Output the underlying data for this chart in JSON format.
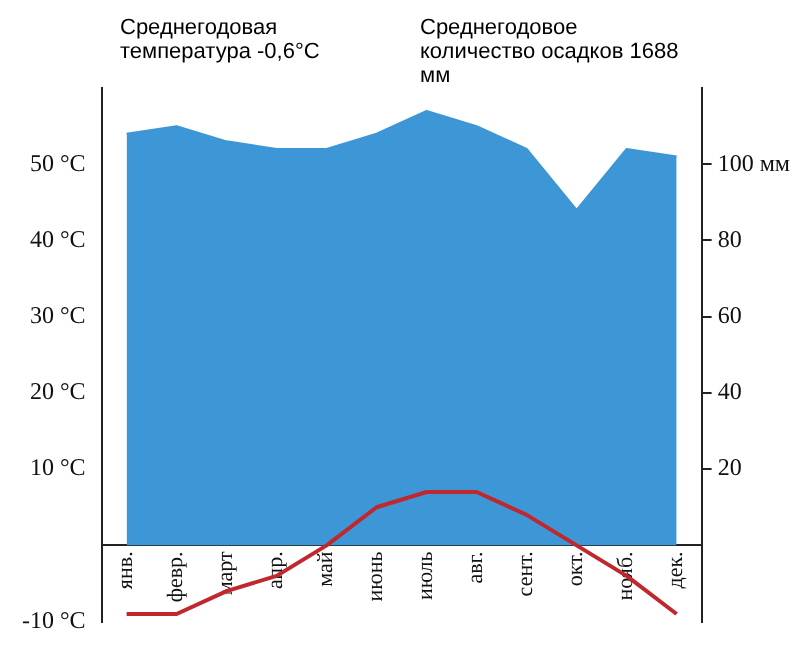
{
  "chart_data": {
    "type": "line",
    "categories": [
      "янв.",
      "февр.",
      "март",
      "апр.",
      "май",
      "июнь",
      "июль",
      "авг.",
      "сент.",
      "окт.",
      "нояб.",
      "дек."
    ],
    "series": [
      {
        "type": "area",
        "axis": "y2",
        "color": "#3d96d6",
        "values": [
          108,
          110,
          106,
          104,
          104,
          108,
          114,
          110,
          104,
          88,
          104,
          102
        ]
      },
      {
        "type": "line",
        "axis": "y",
        "color": "#c0282d",
        "values": [
          -9,
          -9,
          -6,
          -4,
          0,
          5,
          7,
          7,
          4,
          0,
          -4,
          -9
        ]
      }
    ],
    "ylim": [
      -10,
      60
    ],
    "yticks": [
      {
        "value": -10,
        "label": "-10 °C"
      },
      {
        "value": 10,
        "label": "10 °C"
      },
      {
        "value": 20,
        "label": "20 °C"
      },
      {
        "value": 30,
        "label": "30 °C"
      },
      {
        "value": 40,
        "label": "40 °C"
      },
      {
        "value": 50,
        "label": "50 °C"
      }
    ],
    "y2lim": [
      -20,
      120
    ],
    "y2ticks": [
      20,
      40,
      60,
      80,
      {
        "value": 100,
        "label": "100 мм"
      }
    ],
    "annotations": [
      "Среднегодовая температура -0,6°C",
      "Среднегодовое количество осадков 1688 мм"
    ],
    "grid": false,
    "legend": false,
    "marker": "none",
    "line_style": "solid"
  }
}
